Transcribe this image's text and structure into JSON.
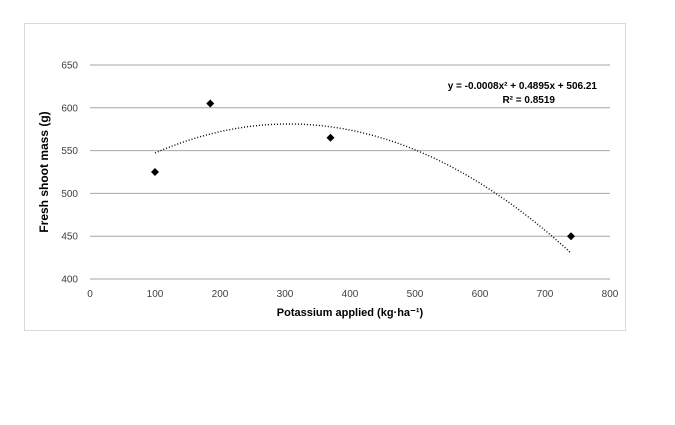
{
  "chart_data": {
    "type": "scatter",
    "title": "",
    "xlabel": "Potassium applied (kg·ha⁻¹)",
    "ylabel": "Fresh shoot mass (g)",
    "xlim": [
      0,
      800
    ],
    "ylim": [
      400,
      650
    ],
    "x_ticks": [
      "0",
      "100",
      "200",
      "300",
      "400",
      "500",
      "600",
      "700",
      "800"
    ],
    "y_ticks": [
      "400",
      "450",
      "500",
      "550",
      "600",
      "650"
    ],
    "grid": "horizontal",
    "points": [
      {
        "x": 100,
        "y": 525
      },
      {
        "x": 185,
        "y": 605
      },
      {
        "x": 370,
        "y": 565
      },
      {
        "x": 740,
        "y": 450
      }
    ],
    "trendline": {
      "type": "polynomial",
      "coefficients": {
        "a": -0.0008,
        "b": 0.4895,
        "c": 506.21
      },
      "x_range": [
        100,
        740
      ],
      "equation": "y = -0.0008x² + 0.4895x + 506.21",
      "r_squared": "R² = 0.8519"
    },
    "colors": {
      "marker": "#000000",
      "grid": "#a6a6a6",
      "trend": "#000000"
    }
  }
}
